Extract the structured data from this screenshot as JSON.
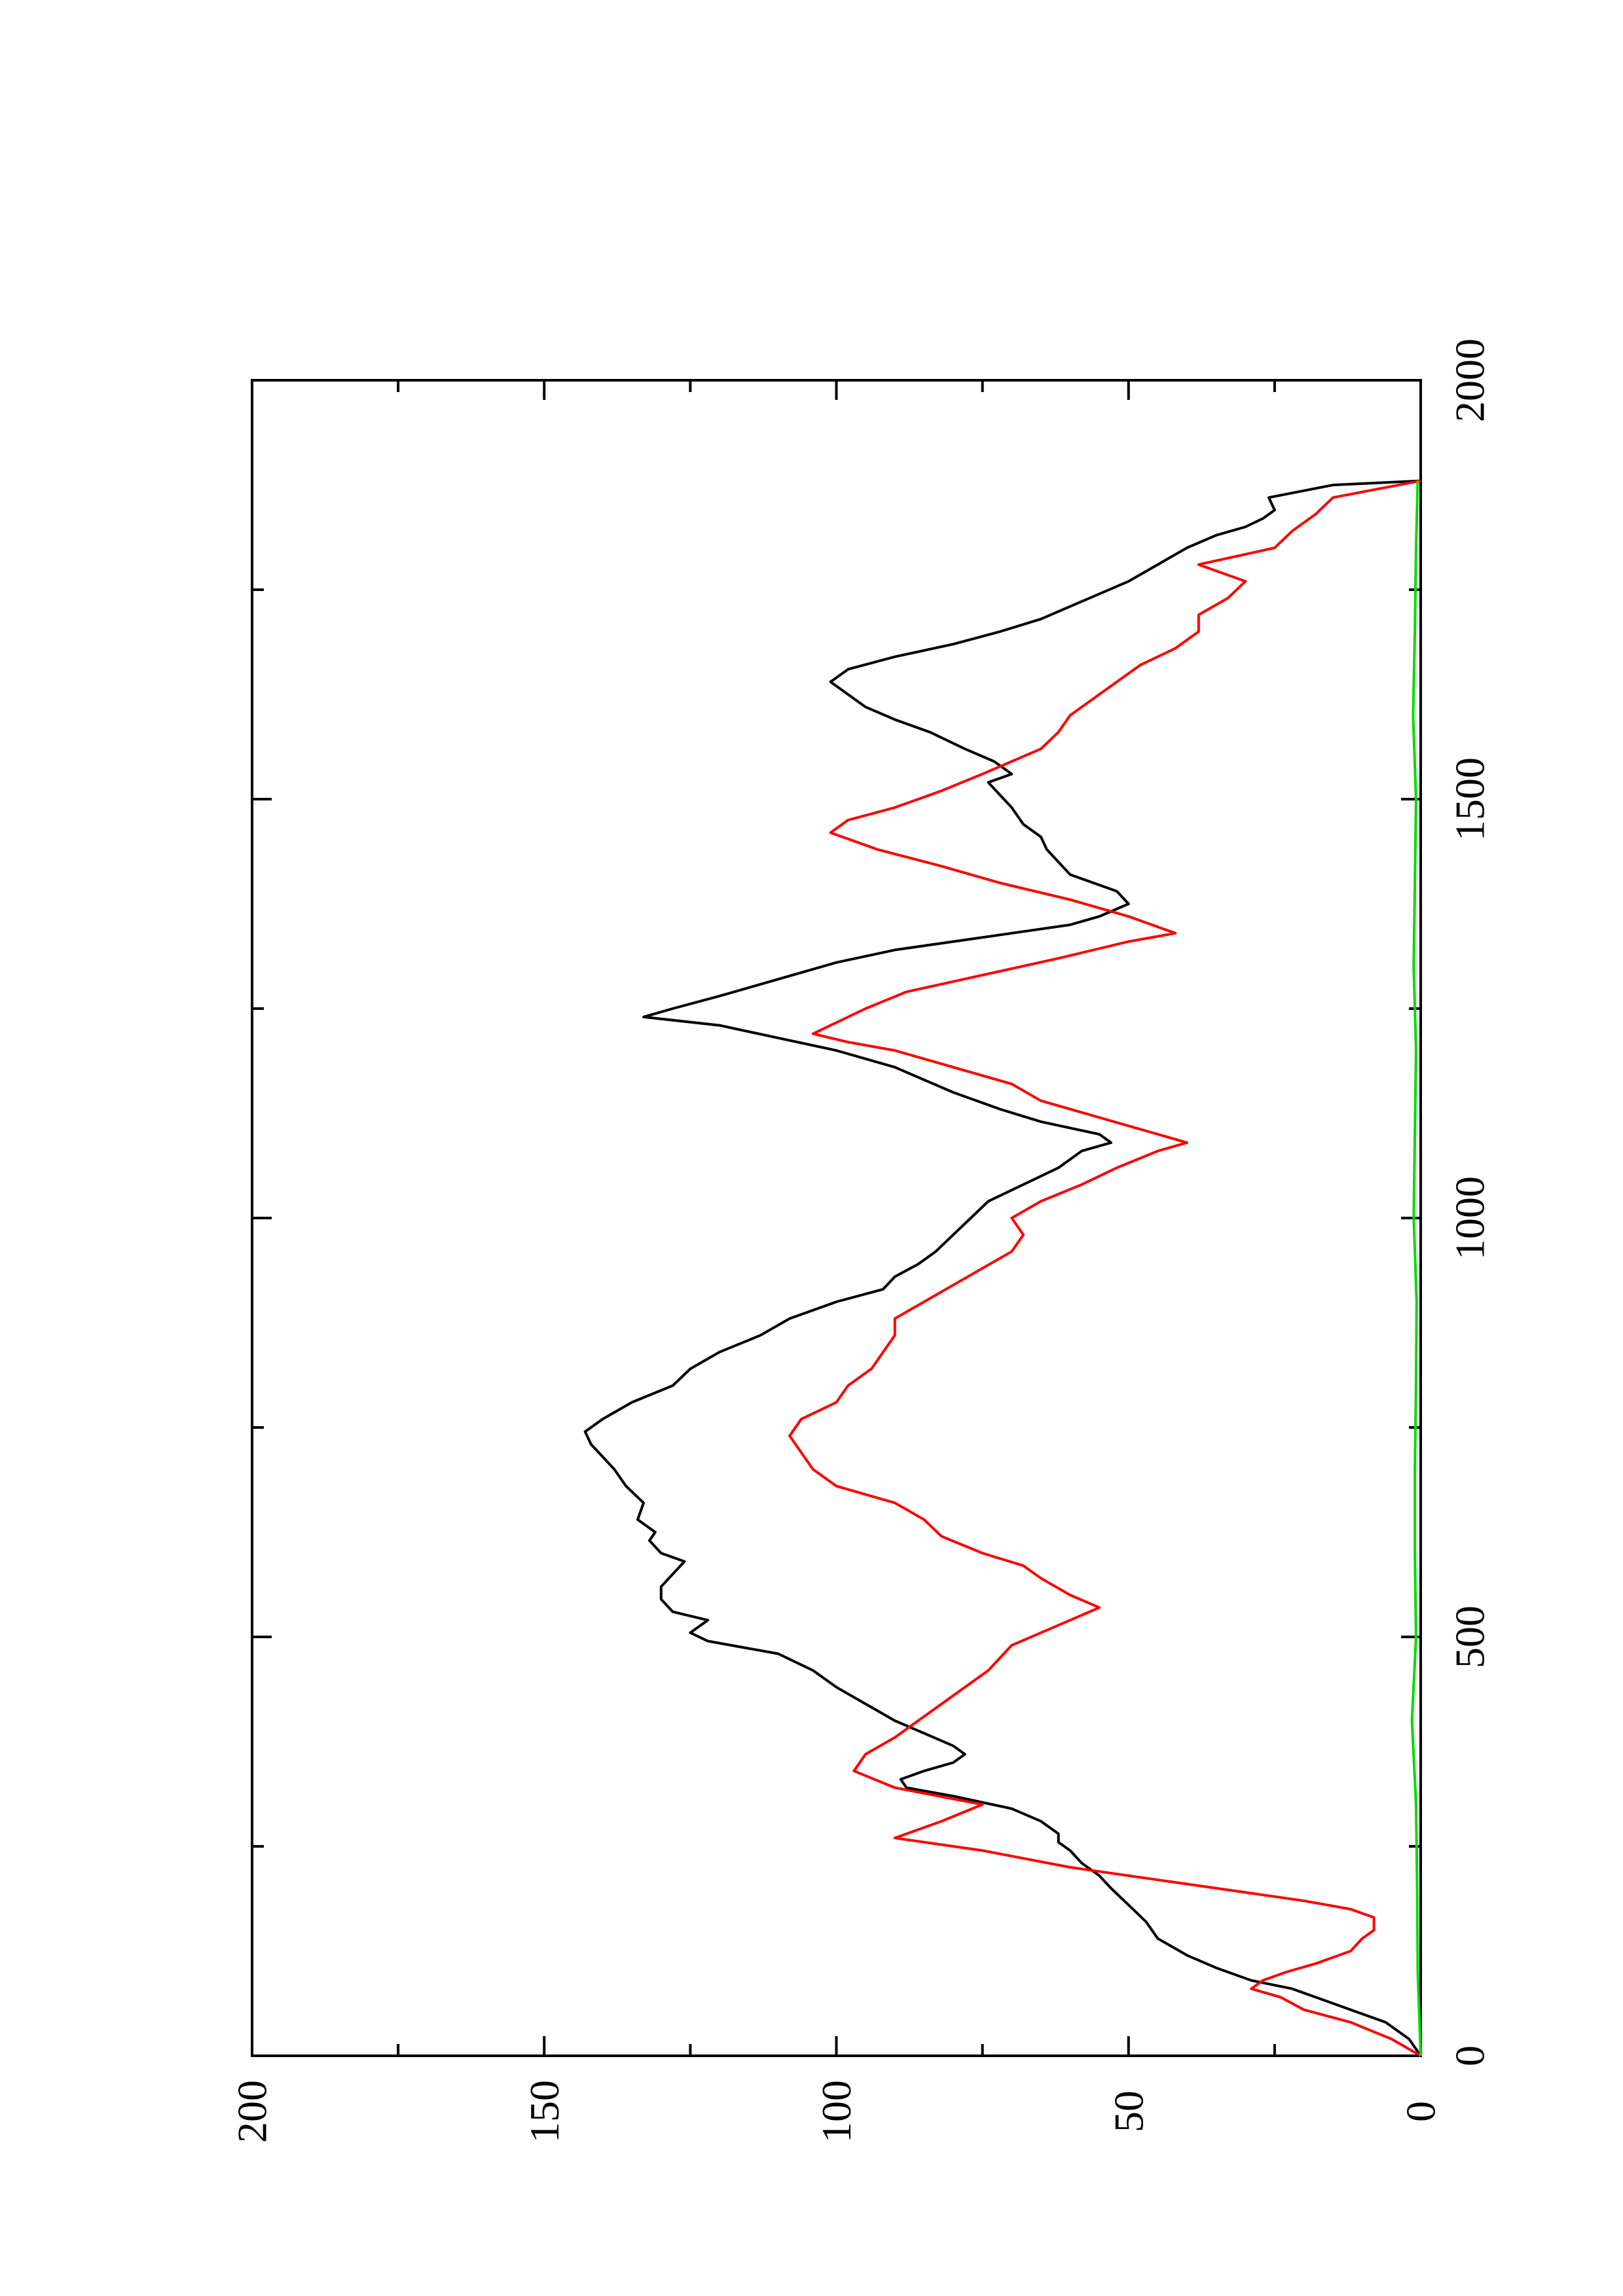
{
  "chart_data": {
    "type": "line",
    "orientation": "rotated-90-ccw",
    "xlim": [
      0,
      2000
    ],
    "ylim": [
      0,
      200
    ],
    "x_ticks": [
      0,
      500,
      1000,
      1500,
      2000
    ],
    "x_tick_labels": [
      "0",
      "500",
      "1000",
      "1500",
      "2000"
    ],
    "x_minor_ticks": [
      250,
      750,
      1250,
      1750
    ],
    "y_ticks": [
      0,
      50,
      100,
      150,
      200
    ],
    "y_tick_labels": [
      "0",
      "50",
      "100",
      "150",
      "200"
    ],
    "y_minor_ticks": [
      25,
      75,
      125,
      175
    ],
    "grid": false,
    "legend": "none",
    "series": [
      {
        "color": "#000000",
        "points": [
          [
            0,
            0
          ],
          [
            20,
            2
          ],
          [
            40,
            6
          ],
          [
            55,
            12
          ],
          [
            70,
            18
          ],
          [
            80,
            22
          ],
          [
            90,
            29
          ],
          [
            105,
            35
          ],
          [
            120,
            40
          ],
          [
            140,
            45
          ],
          [
            160,
            47
          ],
          [
            180,
            50
          ],
          [
            200,
            53
          ],
          [
            215,
            55
          ],
          [
            230,
            58
          ],
          [
            245,
            60
          ],
          [
            255,
            62
          ],
          [
            265,
            62
          ],
          [
            280,
            65
          ],
          [
            295,
            70
          ],
          [
            310,
            80
          ],
          [
            320,
            88
          ],
          [
            330,
            89
          ],
          [
            340,
            85
          ],
          [
            350,
            80
          ],
          [
            360,
            78
          ],
          [
            370,
            80
          ],
          [
            385,
            85
          ],
          [
            400,
            90
          ],
          [
            420,
            95
          ],
          [
            440,
            100
          ],
          [
            460,
            104
          ],
          [
            480,
            110
          ],
          [
            495,
            122
          ],
          [
            505,
            125
          ],
          [
            520,
            122
          ],
          [
            530,
            128
          ],
          [
            545,
            130
          ],
          [
            560,
            130
          ],
          [
            575,
            128
          ],
          [
            590,
            126
          ],
          [
            600,
            130
          ],
          [
            615,
            132
          ],
          [
            625,
            131
          ],
          [
            640,
            134
          ],
          [
            660,
            133
          ],
          [
            680,
            136
          ],
          [
            700,
            138
          ],
          [
            715,
            140
          ],
          [
            730,
            142
          ],
          [
            745,
            143
          ],
          [
            760,
            140
          ],
          [
            780,
            135
          ],
          [
            800,
            128
          ],
          [
            820,
            125
          ],
          [
            840,
            120
          ],
          [
            860,
            113
          ],
          [
            880,
            108
          ],
          [
            900,
            100
          ],
          [
            915,
            92
          ],
          [
            930,
            90
          ],
          [
            945,
            86
          ],
          [
            960,
            83
          ],
          [
            980,
            80
          ],
          [
            1000,
            77
          ],
          [
            1020,
            74
          ],
          [
            1040,
            68
          ],
          [
            1060,
            62
          ],
          [
            1080,
            58
          ],
          [
            1090,
            53
          ],
          [
            1100,
            55
          ],
          [
            1115,
            65
          ],
          [
            1130,
            72
          ],
          [
            1150,
            80
          ],
          [
            1165,
            85
          ],
          [
            1180,
            90
          ],
          [
            1200,
            100
          ],
          [
            1215,
            110
          ],
          [
            1230,
            120
          ],
          [
            1240,
            133
          ],
          [
            1250,
            128
          ],
          [
            1265,
            120
          ],
          [
            1285,
            110
          ],
          [
            1305,
            100
          ],
          [
            1320,
            90
          ],
          [
            1330,
            80
          ],
          [
            1340,
            70
          ],
          [
            1350,
            60
          ],
          [
            1360,
            55
          ],
          [
            1375,
            50
          ],
          [
            1390,
            52
          ],
          [
            1400,
            56
          ],
          [
            1410,
            60
          ],
          [
            1425,
            62
          ],
          [
            1440,
            64
          ],
          [
            1455,
            65
          ],
          [
            1470,
            68
          ],
          [
            1490,
            70
          ],
          [
            1505,
            72
          ],
          [
            1520,
            74
          ],
          [
            1530,
            70
          ],
          [
            1545,
            73
          ],
          [
            1560,
            78
          ],
          [
            1580,
            84
          ],
          [
            1595,
            90
          ],
          [
            1610,
            95
          ],
          [
            1625,
            98
          ],
          [
            1640,
            101
          ],
          [
            1655,
            98
          ],
          [
            1670,
            90
          ],
          [
            1685,
            80
          ],
          [
            1700,
            72
          ],
          [
            1715,
            65
          ],
          [
            1730,
            60
          ],
          [
            1745,
            55
          ],
          [
            1760,
            50
          ],
          [
            1780,
            45
          ],
          [
            1800,
            40
          ],
          [
            1815,
            35
          ],
          [
            1825,
            30
          ],
          [
            1835,
            27
          ],
          [
            1845,
            25
          ],
          [
            1860,
            26
          ],
          [
            1875,
            15
          ],
          [
            1880,
            0
          ]
        ]
      },
      {
        "color": "#ff0000",
        "points": [
          [
            0,
            0
          ],
          [
            20,
            5
          ],
          [
            40,
            12
          ],
          [
            55,
            20
          ],
          [
            70,
            24
          ],
          [
            80,
            29
          ],
          [
            90,
            27
          ],
          [
            100,
            23
          ],
          [
            110,
            18
          ],
          [
            125,
            12
          ],
          [
            140,
            10
          ],
          [
            150,
            8
          ],
          [
            165,
            8
          ],
          [
            175,
            12
          ],
          [
            185,
            20
          ],
          [
            195,
            30
          ],
          [
            210,
            45
          ],
          [
            225,
            60
          ],
          [
            245,
            75
          ],
          [
            260,
            90
          ],
          [
            280,
            82
          ],
          [
            300,
            75
          ],
          [
            320,
            90
          ],
          [
            340,
            97
          ],
          [
            360,
            95
          ],
          [
            380,
            90
          ],
          [
            400,
            86
          ],
          [
            430,
            80
          ],
          [
            460,
            74
          ],
          [
            490,
            70
          ],
          [
            520,
            60
          ],
          [
            535,
            55
          ],
          [
            550,
            60
          ],
          [
            570,
            65
          ],
          [
            585,
            68
          ],
          [
            600,
            75
          ],
          [
            620,
            82
          ],
          [
            640,
            85
          ],
          [
            660,
            90
          ],
          [
            680,
            100
          ],
          [
            700,
            104
          ],
          [
            720,
            106
          ],
          [
            740,
            108
          ],
          [
            760,
            106
          ],
          [
            780,
            100
          ],
          [
            800,
            98
          ],
          [
            820,
            94
          ],
          [
            840,
            92
          ],
          [
            860,
            90
          ],
          [
            880,
            90
          ],
          [
            900,
            85
          ],
          [
            920,
            80
          ],
          [
            940,
            75
          ],
          [
            960,
            70
          ],
          [
            980,
            68
          ],
          [
            1000,
            70
          ],
          [
            1020,
            65
          ],
          [
            1040,
            58
          ],
          [
            1060,
            52
          ],
          [
            1080,
            45
          ],
          [
            1090,
            40
          ],
          [
            1100,
            45
          ],
          [
            1120,
            55
          ],
          [
            1140,
            65
          ],
          [
            1160,
            70
          ],
          [
            1180,
            80
          ],
          [
            1200,
            90
          ],
          [
            1210,
            98
          ],
          [
            1220,
            104
          ],
          [
            1230,
            101
          ],
          [
            1250,
            95
          ],
          [
            1270,
            88
          ],
          [
            1290,
            75
          ],
          [
            1310,
            62
          ],
          [
            1330,
            50
          ],
          [
            1340,
            42
          ],
          [
            1360,
            50
          ],
          [
            1380,
            60
          ],
          [
            1400,
            72
          ],
          [
            1420,
            82
          ],
          [
            1440,
            93
          ],
          [
            1460,
            101
          ],
          [
            1475,
            98
          ],
          [
            1490,
            90
          ],
          [
            1510,
            82
          ],
          [
            1530,
            75
          ],
          [
            1545,
            70
          ],
          [
            1560,
            65
          ],
          [
            1580,
            62
          ],
          [
            1600,
            60
          ],
          [
            1620,
            56
          ],
          [
            1640,
            52
          ],
          [
            1660,
            48
          ],
          [
            1680,
            42
          ],
          [
            1700,
            38
          ],
          [
            1720,
            38
          ],
          [
            1740,
            33
          ],
          [
            1760,
            30
          ],
          [
            1780,
            38
          ],
          [
            1800,
            25
          ],
          [
            1820,
            22
          ],
          [
            1840,
            18
          ],
          [
            1860,
            15
          ],
          [
            1880,
            0
          ]
        ]
      },
      {
        "color": "#00dd00",
        "points": [
          [
            0,
            0
          ],
          [
            100,
            0.5
          ],
          [
            200,
            0.6
          ],
          [
            300,
            0.8
          ],
          [
            400,
            1.5
          ],
          [
            500,
            0.8
          ],
          [
            600,
            1.0
          ],
          [
            700,
            1.0
          ],
          [
            800,
            0.8
          ],
          [
            900,
            0.7
          ],
          [
            1000,
            1.2
          ],
          [
            1100,
            1.0
          ],
          [
            1200,
            0.8
          ],
          [
            1300,
            1.2
          ],
          [
            1400,
            1.0
          ],
          [
            1500,
            0.8
          ],
          [
            1600,
            1.3
          ],
          [
            1700,
            1.0
          ],
          [
            1800,
            0.8
          ],
          [
            1880,
            0.5
          ]
        ]
      }
    ]
  }
}
